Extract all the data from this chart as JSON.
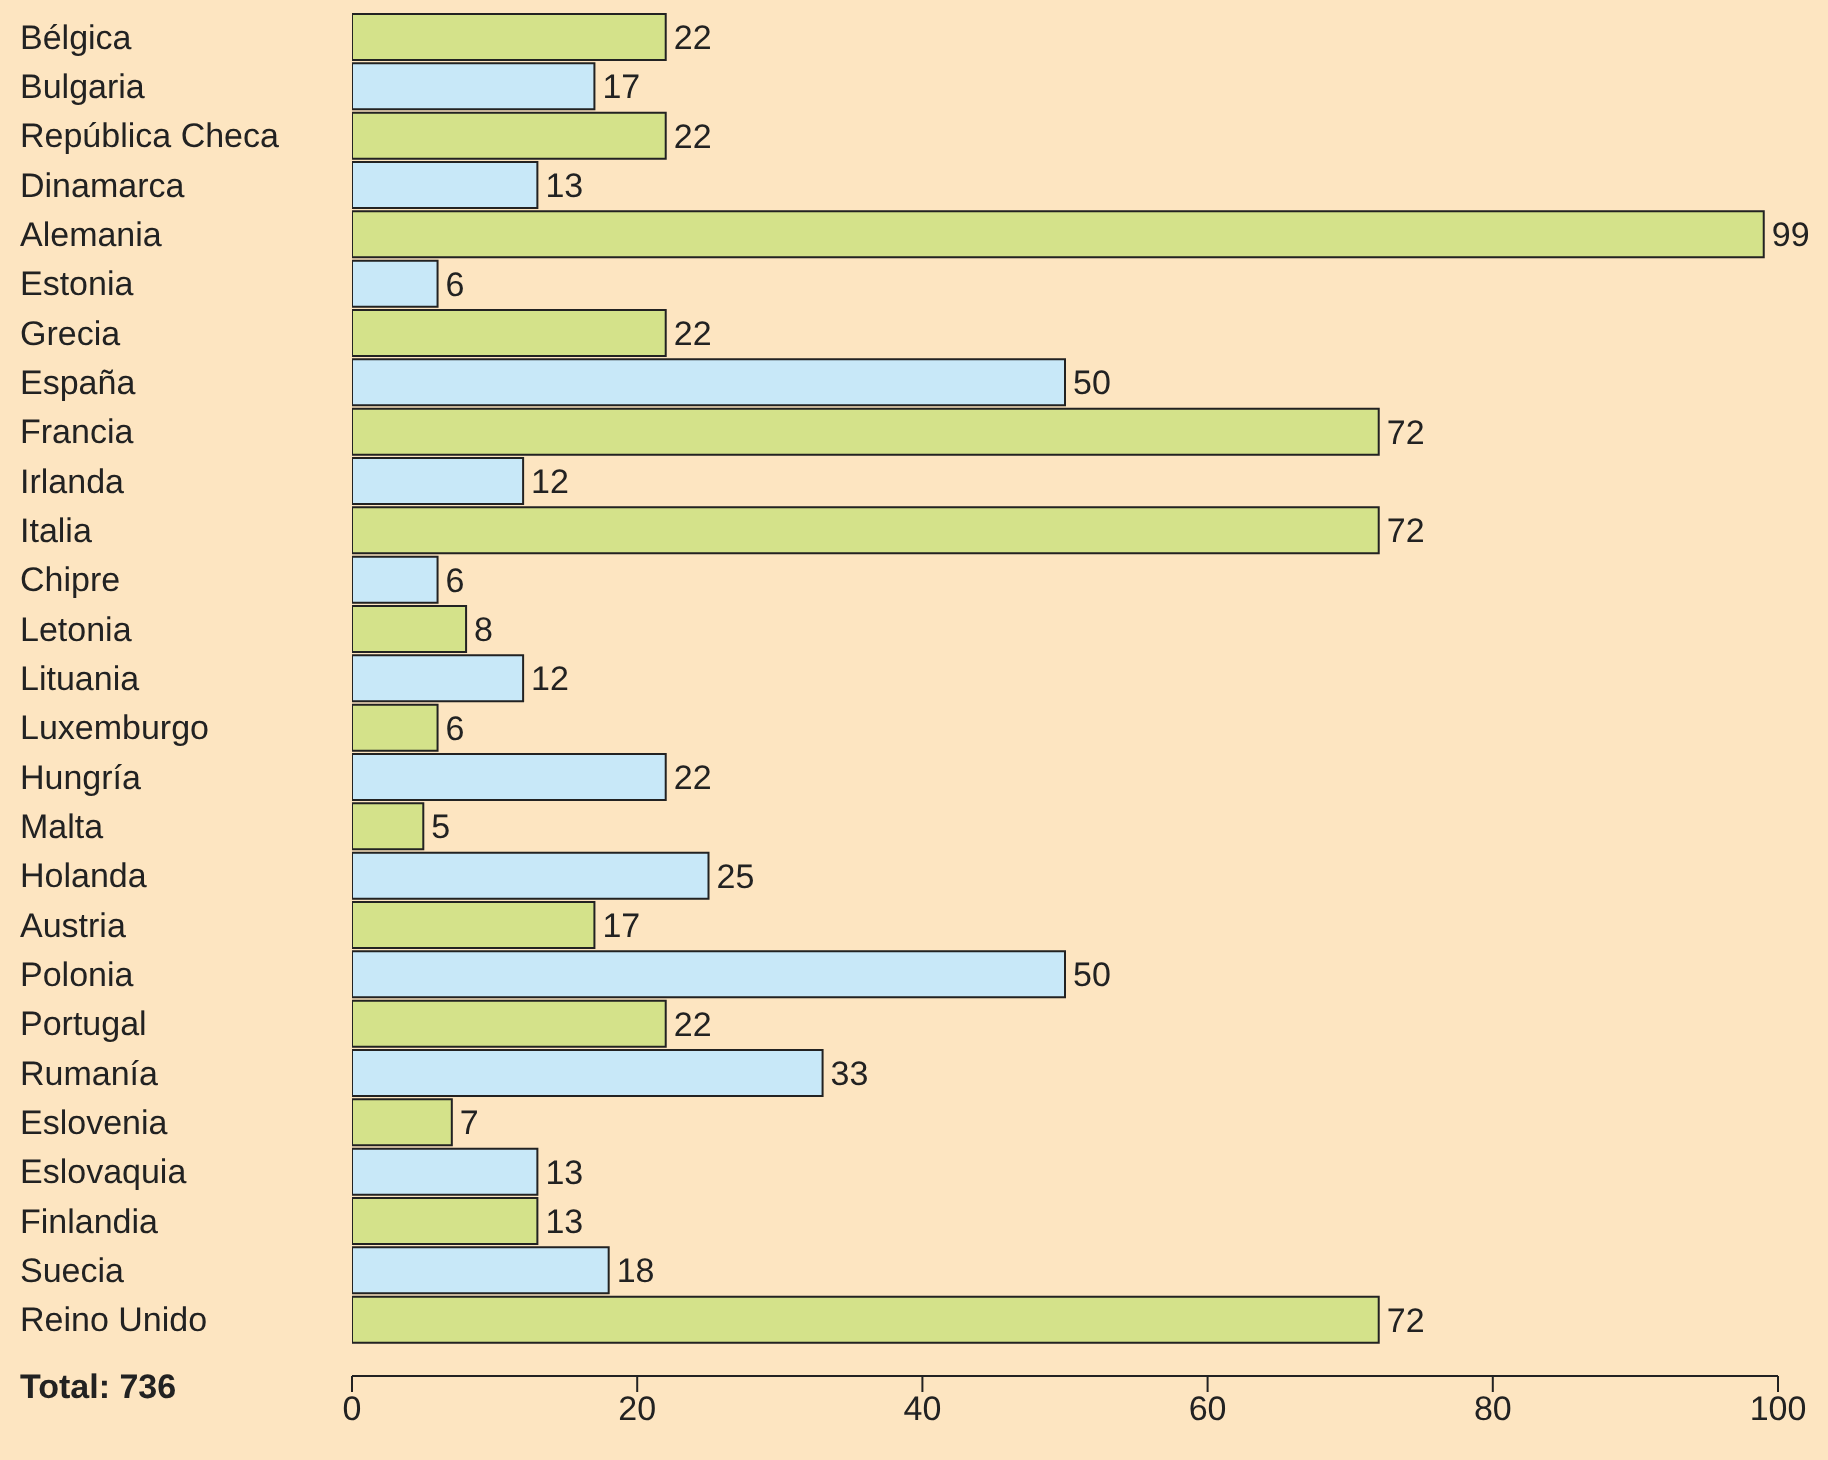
{
  "chart_data": {
    "type": "bar",
    "orientation": "horizontal",
    "categories": [
      "Bélgica",
      "Bulgaria",
      "República Checa",
      "Dinamarca",
      "Alemania",
      "Estonia",
      "Grecia",
      "España",
      "Francia",
      "Irlanda",
      "Italia",
      "Chipre",
      "Letonia",
      "Lituania",
      "Luxemburgo",
      "Hungría",
      "Malta",
      "Holanda",
      "Austria",
      "Polonia",
      "Portugal",
      "Rumanía",
      "Eslovenia",
      "Eslovaquia",
      "Finlandia",
      "Suecia",
      "Reino Unido"
    ],
    "values": [
      22,
      17,
      22,
      13,
      99,
      6,
      22,
      50,
      72,
      12,
      72,
      6,
      8,
      12,
      6,
      22,
      5,
      25,
      17,
      50,
      22,
      33,
      7,
      13,
      13,
      18,
      72
    ],
    "colors": [
      "#d4e28a",
      "#c8e8f8",
      "#d4e28a",
      "#c8e8f8",
      "#d4e28a",
      "#c8e8f8",
      "#d4e28a",
      "#c8e8f8",
      "#d4e28a",
      "#c8e8f8",
      "#d4e28a",
      "#c8e8f8",
      "#d4e28a",
      "#c8e8f8",
      "#d4e28a",
      "#c8e8f8",
      "#d4e28a",
      "#c8e8f8",
      "#d4e28a",
      "#c8e8f8",
      "#d4e28a",
      "#c8e8f8",
      "#d4e28a",
      "#c8e8f8",
      "#d4e28a",
      "#c8e8f8",
      "#d4e28a"
    ],
    "xlim": [
      0,
      100
    ],
    "xticks": [
      0,
      20,
      40,
      60,
      80,
      100
    ],
    "data_labels": true,
    "annotations": [
      "Total: 736"
    ]
  }
}
